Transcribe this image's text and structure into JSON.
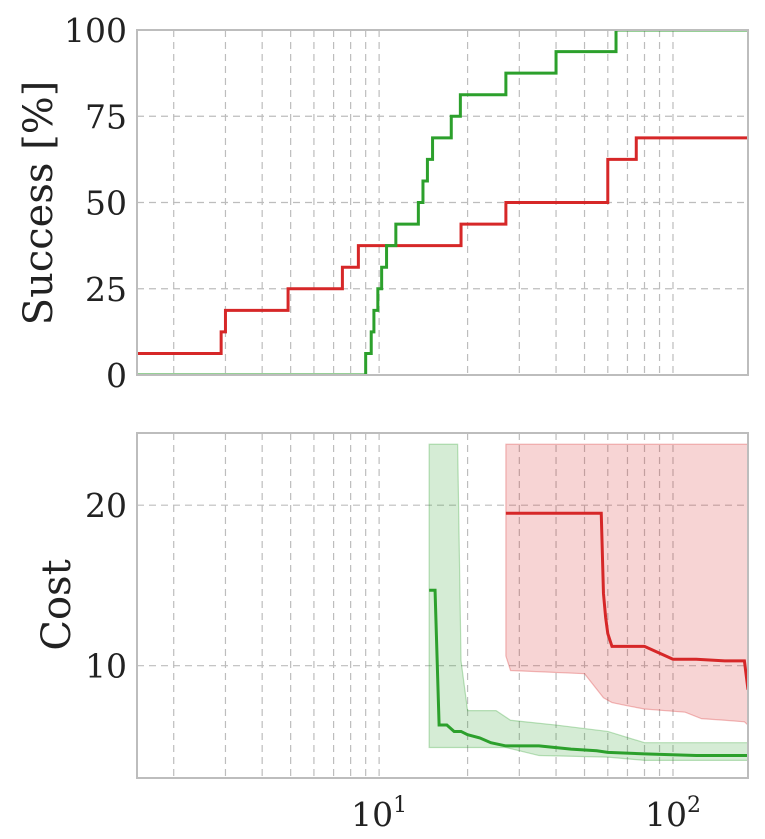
{
  "colors": {
    "series1": "#d62728",
    "series2": "#2ca02c",
    "grid": "#bdbdbd"
  },
  "chart_data": [
    {
      "type": "line",
      "panel": "top",
      "ylabel": "Success [%]",
      "xlabel": "",
      "xscale": "log",
      "xlim": [
        1.5,
        180
      ],
      "ylim": [
        0,
        100
      ],
      "yticks": [
        "0",
        "25",
        "50",
        "75",
        "100"
      ],
      "grid": true,
      "series": [
        {
          "color": "#d62728",
          "step": true,
          "x": [
            1.5,
            2.9,
            3.0,
            4.9,
            7.5,
            8.5,
            19,
            27,
            60,
            75,
            180
          ],
          "y": [
            6.25,
            12.5,
            18.75,
            25,
            31.25,
            37.5,
            43.75,
            50,
            62.5,
            68.75,
            68.75
          ]
        },
        {
          "color": "#2ca02c",
          "step": true,
          "x": [
            1.5,
            8.8,
            9.0,
            9.4,
            9.6,
            9.9,
            10.2,
            10.6,
            11.0,
            11.4,
            11.8,
            12.2,
            12.7,
            13.6,
            14.1,
            14.6,
            15.2,
            15.7,
            16.3,
            17.6,
            18.9,
            19.4,
            27,
            40,
            64,
            180
          ],
          "y": [
            0,
            0,
            6.25,
            12.5,
            18.75,
            25,
            31.25,
            37.5,
            37.5,
            43.75,
            43.75,
            43.75,
            43.75,
            50,
            56.25,
            62.5,
            68.75,
            68.75,
            68.75,
            75,
            81.25,
            81.25,
            87.5,
            93.75,
            100,
            100
          ]
        }
      ]
    },
    {
      "type": "line",
      "panel": "bottom",
      "ylabel": "Cost",
      "xlabel": "",
      "xscale": "log",
      "xlim": [
        1.5,
        180
      ],
      "ylim": [
        3,
        24.5
      ],
      "yticks": [
        "10",
        "20"
      ],
      "xticks": [
        {
          "base": "10",
          "exp": "1",
          "value": 10
        },
        {
          "base": "10",
          "exp": "2",
          "value": 100
        }
      ],
      "grid": true,
      "series": [
        {
          "color": "#d62728",
          "x": [
            27,
            57,
            58,
            59,
            60,
            62,
            80,
            100,
            120,
            150,
            175,
            180
          ],
          "y": [
            19.5,
            19.5,
            14.5,
            13.0,
            12.0,
            11.2,
            11.2,
            10.4,
            10.4,
            10.3,
            10.3,
            8.5
          ],
          "band_upper": [
            [
              27,
              23.8
            ],
            [
              180,
              23.8
            ]
          ],
          "band_lower": [
            [
              27,
              10.6
            ],
            [
              28,
              9.7
            ],
            [
              50,
              9.5
            ],
            [
              58,
              8.0
            ],
            [
              62,
              7.7
            ],
            [
              70,
              7.5
            ],
            [
              80,
              7.3
            ],
            [
              110,
              7.1
            ],
            [
              125,
              6.7
            ],
            [
              150,
              6.6
            ],
            [
              175,
              6.5
            ],
            [
              180,
              6.3
            ]
          ]
        },
        {
          "color": "#2ca02c",
          "x": [
            14.8,
            15.5,
            16.0,
            17.0,
            18.0,
            19.0,
            20.0,
            22.0,
            24.0,
            27.0,
            35.0,
            45.0,
            55.0,
            60.0,
            80.0,
            120.0,
            180.0
          ],
          "y": [
            14.7,
            14.7,
            6.3,
            6.3,
            5.9,
            5.9,
            5.7,
            5.5,
            5.2,
            5.0,
            5.0,
            4.8,
            4.7,
            4.6,
            4.5,
            4.4,
            4.4
          ],
          "band_upper": [
            [
              14.8,
              23.8
            ],
            [
              18.5,
              23.8
            ],
            [
              19.0,
              10.3
            ],
            [
              20.0,
              7.2
            ],
            [
              25.0,
              7.2
            ],
            [
              28.0,
              6.6
            ],
            [
              40.0,
              6.3
            ],
            [
              60.0,
              5.9
            ],
            [
              80.0,
              5.2
            ],
            [
              180.0,
              5.2
            ]
          ],
          "band_lower": [
            [
              14.8,
              4.9
            ],
            [
              27.0,
              4.9
            ],
            [
              35.0,
              4.4
            ],
            [
              60.0,
              4.3
            ],
            [
              80.0,
              4.1
            ],
            [
              180.0,
              4.1
            ]
          ]
        }
      ]
    }
  ]
}
